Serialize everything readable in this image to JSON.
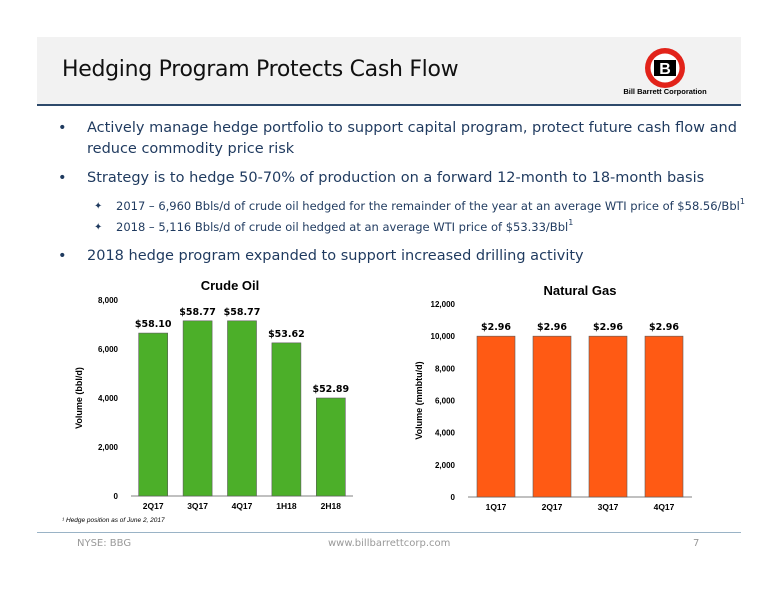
{
  "slide": {
    "title": "Hedging Program Protects Cash Flow",
    "company": "Bill Barrett Corporation",
    "logo_letter": "B"
  },
  "bullets": [
    {
      "level": 1,
      "marker": "•",
      "text": "Actively manage hedge portfolio to support capital program, protect future cash flow and reduce commodity price risk"
    },
    {
      "level": 1,
      "marker": "•",
      "text": "Strategy is to hedge 50-70% of production on a forward 12-month to 18-month basis"
    },
    {
      "level": 2,
      "marker": "✦",
      "text": "2017 – 6,960 Bbls/d of crude oil hedged for the remainder of the year at an average WTI price of $58.56/Bbl",
      "sup": "1"
    },
    {
      "level": 2,
      "marker": "✦",
      "text": "2018 – 5,116 Bbls/d of crude oil hedged at an average WTI price of $53.33/Bbl",
      "sup": "1"
    },
    {
      "level": 1,
      "marker": "•",
      "text": "2018 hedge program expanded to support increased drilling activity"
    }
  ],
  "chart_data": [
    {
      "type": "bar",
      "title": "Crude Oil",
      "ylabel": "Volume (bbl/d)",
      "xlabel": "",
      "categories": [
        "2Q17",
        "3Q17",
        "4Q17",
        "1H18",
        "2H18"
      ],
      "values": [
        6650,
        7150,
        7150,
        6250,
        4000
      ],
      "data_labels": [
        "$58.10",
        "$58.77",
        "$58.77",
        "$53.62",
        "$52.89"
      ],
      "ylim": [
        0,
        8000
      ],
      "yticks": [
        0,
        2000,
        4000,
        6000,
        8000
      ],
      "ytick_labels": [
        "0",
        "2,000",
        "4,000",
        "6,000",
        "8,000"
      ],
      "color": "#4caf29",
      "grid": false,
      "legend": "none"
    },
    {
      "type": "bar",
      "title": "Natural Gas",
      "ylabel": "Volume (mmbtu/d)",
      "xlabel": "",
      "categories": [
        "1Q17",
        "2Q17",
        "3Q17",
        "4Q17"
      ],
      "values": [
        10000,
        10000,
        10000,
        10000
      ],
      "data_labels": [
        "$2.96",
        "$2.96",
        "$2.96",
        "$2.96"
      ],
      "ylim": [
        0,
        12000
      ],
      "yticks": [
        0,
        2000,
        4000,
        6000,
        8000,
        10000,
        12000
      ],
      "ytick_labels": [
        "0",
        "2,000",
        "4,000",
        "6,000",
        "8,000",
        "10,000",
        "12,000"
      ],
      "color": "#ff5a14",
      "grid": false,
      "legend": "none"
    }
  ],
  "footnote": "¹ Hedge position as of June 2, 2017",
  "footer": {
    "ticker": "NYSE: BBG",
    "website": "www.billbarrettcorp.com",
    "page": "7"
  }
}
